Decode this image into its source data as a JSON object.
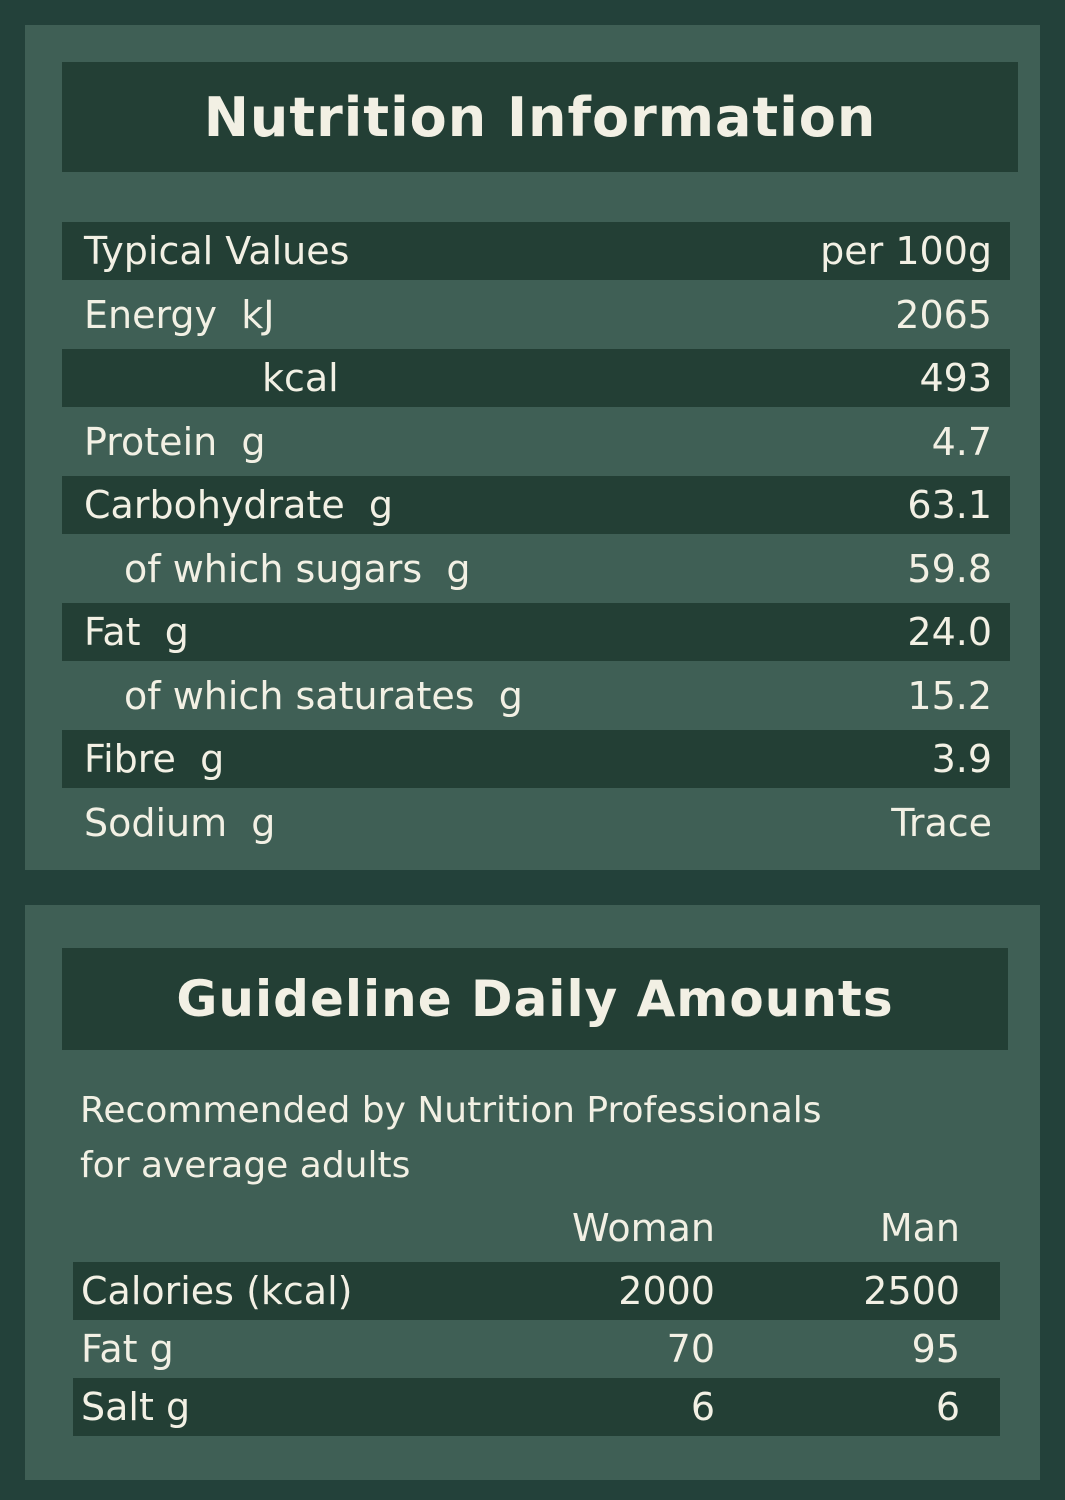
{
  "nutrition": {
    "title": "Nutrition Information",
    "header": {
      "label": "Typical Values",
      "value": "per 100g"
    },
    "rows": [
      {
        "label": "Energy  kJ",
        "value": "2065",
        "indent": 0
      },
      {
        "label": "kcal",
        "value": "493",
        "indent": 2
      },
      {
        "label": "Protein  g",
        "value": "4.7",
        "indent": 0
      },
      {
        "label": "Carbohydrate  g",
        "value": "63.1",
        "indent": 0
      },
      {
        "label": "of which sugars  g",
        "value": "59.8",
        "indent": 1
      },
      {
        "label": "Fat  g",
        "value": "24.0",
        "indent": 0
      },
      {
        "label": "of which saturates  g",
        "value": "15.2",
        "indent": 1
      },
      {
        "label": "Fibre  g",
        "value": "3.9",
        "indent": 0
      },
      {
        "label": "Sodium  g",
        "value": "Trace",
        "indent": 0
      }
    ]
  },
  "gda": {
    "title": "Guideline Daily Amounts",
    "note_line1": "Recommended by Nutrition Professionals",
    "note_line2": "for average adults",
    "columns": [
      "Woman",
      "Man"
    ],
    "rows": [
      {
        "label": "Calories (kcal)",
        "woman": "2000",
        "man": "2500"
      },
      {
        "label": "Fat g",
        "woman": "70",
        "man": "95"
      },
      {
        "label": "Salt g",
        "woman": "6",
        "man": "6"
      }
    ]
  },
  "colors": {
    "background": "#23413a",
    "panel": "#3f5f55",
    "bar": "#233f35",
    "text": "#f2f0e4"
  }
}
